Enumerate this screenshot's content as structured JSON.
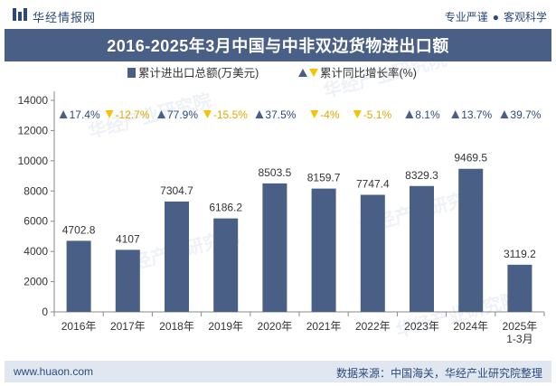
{
  "header": {
    "brand_name": "华经情报网",
    "tagline_left": "专业严谨",
    "tagline_right": "客观科学"
  },
  "title": "2016-2025年3月中国与中非双边货物进出口额",
  "legend": {
    "bar_label": "累计进出口总额(万美元)",
    "growth_label": "累计同比增长率(%)"
  },
  "watermark": "华经产业研究院",
  "footer": {
    "website": "www.huaon.com",
    "source": "数据来源：中国海关，华经产业研究院整理"
  },
  "colors": {
    "bar": "#4a5f86",
    "growth_positive": "#4a5f86",
    "growth_negative": "#f5c400",
    "growth_text": "#2b4a7a"
  },
  "chart_data": {
    "type": "bar",
    "categories": [
      "2016年",
      "2017年",
      "2018年",
      "2019年",
      "2020年",
      "2021年",
      "2022年",
      "2023年",
      "2024年",
      "2025年\n1-3月"
    ],
    "series": [
      {
        "name": "累计进出口总额(万美元)",
        "values": [
          4702.8,
          4107,
          7304.7,
          6186.2,
          8503.5,
          8159.7,
          7747.4,
          8329.3,
          9469.5,
          3119.2
        ]
      },
      {
        "name": "累计同比增长率(%)",
        "values": [
          17.4,
          -12.7,
          77.9,
          -15.5,
          37.5,
          -4,
          -5.1,
          8.1,
          13.7,
          39.7
        ]
      }
    ],
    "value_labels": [
      "4702.8",
      "4107",
      "7304.7",
      "6186.2",
      "8503.5",
      "8159.7",
      "7747.4",
      "8329.3",
      "9469.5",
      "3119.2"
    ],
    "growth_labels": [
      "17.4%",
      "-12.7%",
      "77.9%",
      "-15.5%",
      "37.5%",
      "-4%",
      "-5.1%",
      "8.1%",
      "13.7%",
      "39.7%"
    ],
    "yticks": [
      "0",
      "2000",
      "4000",
      "6000",
      "8000",
      "10000",
      "12000",
      "14000"
    ],
    "ylim": [
      0,
      14000
    ],
    "grid": false,
    "legend_position": "top"
  }
}
